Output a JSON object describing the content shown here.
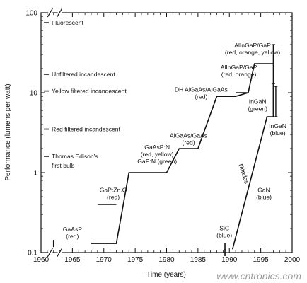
{
  "chart_data": {
    "type": "line",
    "xlabel": "Time (years)",
    "ylabel": "Performance (lumens per watt)",
    "xlim": [
      1960,
      2000
    ],
    "ylim": [
      0.1,
      100
    ],
    "yscale": "log",
    "x_ticks": [
      1960,
      1965,
      1970,
      1975,
      1980,
      1985,
      1990,
      1995,
      2000
    ],
    "y_ticks": [
      {
        "value": 0.1,
        "label": "0.1"
      },
      {
        "value": 1,
        "label": "1"
      },
      {
        "value": 10,
        "label": "10"
      },
      {
        "value": 100,
        "label": "100"
      }
    ],
    "axis_break": "//",
    "series": [
      {
        "points": [
          [
            1968,
            0.13
          ],
          [
            1972,
            0.13
          ],
          [
            1974,
            1
          ],
          [
            1980,
            1
          ],
          [
            1982,
            2
          ],
          [
            1985,
            2
          ],
          [
            1988,
            9
          ],
          [
            1991,
            9
          ],
          [
            1993,
            10
          ],
          [
            1994,
            23
          ],
          [
            1997,
            23
          ]
        ]
      },
      {
        "points": [
          [
            1990.5,
            0.11
          ],
          [
            1996,
            5
          ],
          [
            1997,
            5
          ],
          [
            1997,
            13
          ]
        ]
      }
    ],
    "error_bars": [
      {
        "x": 1997,
        "low": 13,
        "high": 40
      },
      {
        "x": 1997.4,
        "low": 5,
        "high": 12
      }
    ],
    "segments": [
      {
        "x1": 1969,
        "x2": 1972,
        "y": 0.4
      },
      {
        "x1": 1991,
        "x2": 1993,
        "y": 10
      }
    ],
    "markers": [
      {
        "x": 1962,
        "y": 0.13
      },
      {
        "x": 1989.3,
        "y": 0.12
      },
      {
        "x": 1989.3,
        "y": 0.1
      }
    ],
    "benchmarks": [
      {
        "y": 75,
        "label": "Fluorescent"
      },
      {
        "y": 17,
        "label": "Unfiltered incandescent"
      },
      {
        "y": 10.5,
        "label": "Yellow filtered incandescent"
      },
      {
        "y": 3.5,
        "label": "Red filtered incandescent"
      },
      {
        "y": 1.6,
        "label": "Thomas Edison's"
      },
      {
        "y": 1.22,
        "label": "first bulb"
      }
    ],
    "annotations": [
      {
        "x": 1965,
        "y": 0.185,
        "lines": [
          "GaAsP",
          "(red)"
        ],
        "anchor": "middle"
      },
      {
        "x": 1971.5,
        "y": 0.57,
        "lines": [
          "GaP:Zn.O",
          "(red)"
        ],
        "anchor": "middle"
      },
      {
        "x": 1978.5,
        "y": 1.95,
        "lines": [
          "GaAsP:N",
          "(red, yellow)",
          "GaP:N  (green)"
        ],
        "anchor": "middle"
      },
      {
        "x": 1983.5,
        "y": 2.75,
        "lines": [
          "AlGaAs/GaAs",
          "(red)"
        ],
        "anchor": "middle"
      },
      {
        "x": 1985.5,
        "y": 10.3,
        "lines": [
          "DH AlGaAs/AlGaAs",
          "(red)"
        ],
        "anchor": "middle"
      },
      {
        "x": 1991.5,
        "y": 19.5,
        "lines": [
          "AlInGaP/GaP",
          "(red, orange)"
        ],
        "anchor": "middle"
      },
      {
        "x": 1993.7,
        "y": 37,
        "lines": [
          "AlInGaP/GaP",
          "(red, orange, yellow)"
        ],
        "anchor": "middle"
      },
      {
        "x": 1994.5,
        "y": 7.3,
        "lines": [
          "InGaN",
          "(green)"
        ],
        "anchor": "middle"
      },
      {
        "x": 1997.7,
        "y": 3.6,
        "lines": [
          "InGaN",
          "(blue)"
        ],
        "anchor": "middle"
      },
      {
        "x": 1995.5,
        "y": 0.57,
        "lines": [
          "GaN",
          "(blue)"
        ],
        "anchor": "middle"
      },
      {
        "x": 1989.2,
        "y": 0.19,
        "lines": [
          "SiC",
          "(blue)"
        ],
        "anchor": "middle"
      },
      {
        "x": 1992,
        "y": 0.95,
        "lines": [
          "Nitrides"
        ],
        "anchor": "middle",
        "rotate": 72
      }
    ]
  },
  "watermark": "www.cntronics.com"
}
